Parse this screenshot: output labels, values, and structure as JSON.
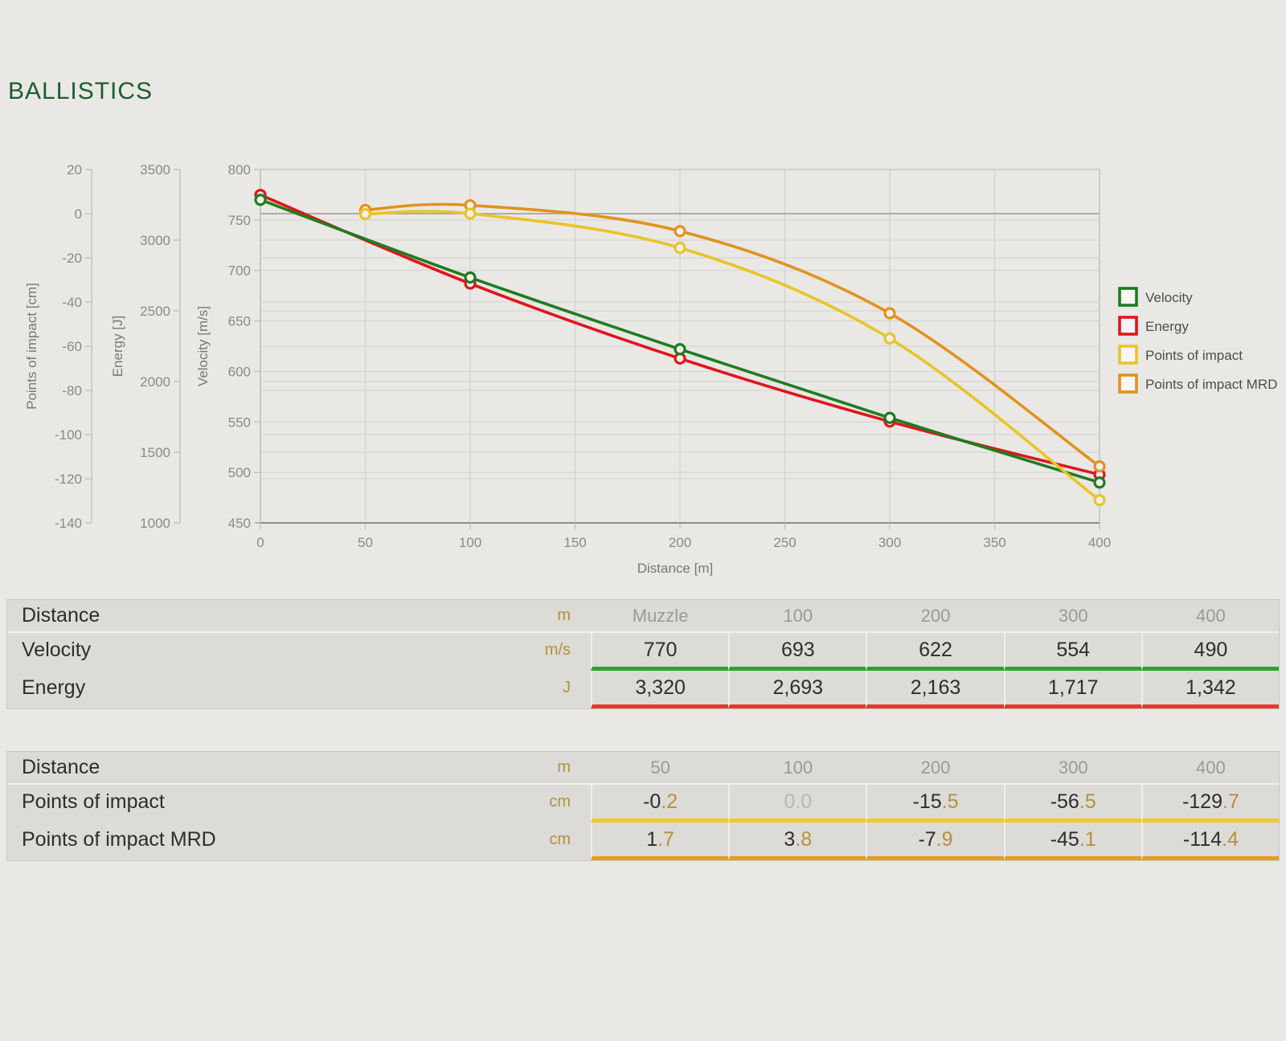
{
  "title": "BALLISTICS",
  "colors": {
    "page_bg": "#e9e8e5",
    "title_green": "#1d5d2e",
    "grid": "#d3d1ce",
    "zero_line": "#9a9894",
    "plot_border": "#c5c3c0",
    "bottom_axis": "#8e8c88",
    "axis_line": "#c2c0bd",
    "marker_fill": "#f1f0ed",
    "gold_unit": "#b5913a"
  },
  "chart_data": {
    "type": "line",
    "x_axis": {
      "title": "Distance [m]",
      "min": 0,
      "max": 400,
      "ticks": [
        0,
        50,
        100,
        150,
        200,
        250,
        300,
        350,
        400
      ]
    },
    "y_axes": [
      {
        "id": "impact",
        "title": "Points of impact [cm]",
        "min": -140,
        "max": 20,
        "ticks": [
          20,
          0,
          -20,
          -40,
          -60,
          -80,
          -100,
          -120,
          -140
        ],
        "zero_line": 0
      },
      {
        "id": "energy",
        "title": "Energy [J]",
        "min": 1000,
        "max": 3500,
        "ticks": [
          3500,
          3000,
          2500,
          2000,
          1500,
          1000
        ]
      },
      {
        "id": "velocity",
        "title": "Velocity [m/s]",
        "min": 450,
        "max": 800,
        "ticks": [
          800,
          750,
          700,
          650,
          600,
          550,
          500,
          450
        ]
      }
    ],
    "series": [
      {
        "name": "Velocity",
        "axis": "velocity",
        "color": "#1e7d1f",
        "x": [
          0,
          100,
          200,
          300,
          400
        ],
        "values": [
          770,
          693,
          622,
          554,
          490
        ]
      },
      {
        "name": "Energy",
        "axis": "energy",
        "color": "#e0141c",
        "x": [
          0,
          100,
          200,
          300,
          400
        ],
        "values": [
          3320,
          2693,
          2163,
          1717,
          1342
        ]
      },
      {
        "name": "Points of impact",
        "axis": "impact",
        "color": "#e9c427",
        "x": [
          50,
          100,
          200,
          300,
          400
        ],
        "values": [
          -0.2,
          0.0,
          -15.5,
          -56.5,
          -129.7
        ]
      },
      {
        "name": "Points of impact MRD",
        "axis": "impact",
        "color": "#e2921d",
        "x": [
          50,
          100,
          200,
          300,
          400
        ],
        "values": [
          1.7,
          3.8,
          -7.9,
          -45.1,
          -114.4
        ]
      }
    ],
    "legend": {
      "position": "right",
      "entries": [
        "Velocity",
        "Energy",
        "Points of impact",
        "Points of impact MRD"
      ]
    },
    "grid_on": true
  },
  "tables": [
    {
      "id": "velocity-energy-table",
      "header": {
        "label": "Distance",
        "unit": "m",
        "columns": [
          "Muzzle",
          "100",
          "200",
          "300",
          "400"
        ]
      },
      "rows": [
        {
          "label": "Velocity",
          "unit": "m/s",
          "bar_color": "#2aa42d",
          "decimal_style": false,
          "values": [
            {
              "v": "770"
            },
            {
              "v": "693"
            },
            {
              "v": "622"
            },
            {
              "v": "554"
            },
            {
              "v": "490"
            }
          ]
        },
        {
          "label": "Energy",
          "unit": "J",
          "bar_color": "#e6392c",
          "decimal_style": false,
          "values": [
            {
              "v": "3,320"
            },
            {
              "v": "2,693"
            },
            {
              "v": "2,163"
            },
            {
              "v": "1,717"
            },
            {
              "v": "1,342"
            }
          ]
        }
      ]
    },
    {
      "id": "points-of-impact-table",
      "header": {
        "label": "Distance",
        "unit": "m",
        "columns": [
          "50",
          "100",
          "200",
          "300",
          "400"
        ]
      },
      "rows": [
        {
          "label": "Points of impact",
          "unit": "cm",
          "bar_color": "#f2ca28",
          "decimal_style": true,
          "values": [
            {
              "v": "-0.2"
            },
            {
              "v": "0.0",
              "muted": true
            },
            {
              "v": "-15.5"
            },
            {
              "v": "-56.5"
            },
            {
              "v": "-129.7"
            }
          ]
        },
        {
          "label": "Points of impact MRD",
          "unit": "cm",
          "bar_color": "#e89b1c",
          "decimal_style": true,
          "values": [
            {
              "v": "1.7"
            },
            {
              "v": "3.8"
            },
            {
              "v": "-7.9"
            },
            {
              "v": "-45.1"
            },
            {
              "v": "-114.4"
            }
          ]
        }
      ]
    }
  ]
}
